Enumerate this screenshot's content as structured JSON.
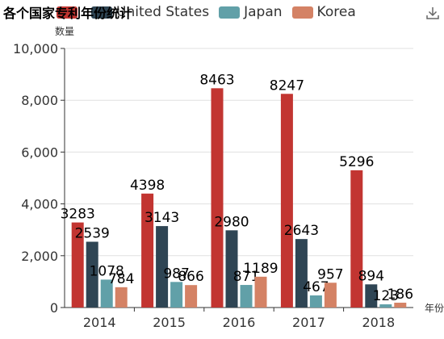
{
  "chart_data": {
    "type": "bar",
    "title": "各个国家专利年份统计",
    "xlabel": "年份",
    "ylabel": "数量",
    "categories": [
      "2014",
      "2015",
      "2016",
      "2017",
      "2018"
    ],
    "series": [
      {
        "name": "",
        "color": "#c23531",
        "values": [
          3283,
          4398,
          8463,
          8247,
          5296
        ]
      },
      {
        "name": "United States",
        "color": "#2f4554",
        "values": [
          2539,
          3143,
          2980,
          2643,
          894
        ]
      },
      {
        "name": "Japan",
        "color": "#61a0a8",
        "values": [
          1078,
          987,
          871,
          467,
          123
        ]
      },
      {
        "name": "Korea",
        "color": "#d48265",
        "values": [
          784,
          866,
          1189,
          957,
          186
        ]
      }
    ],
    "yticks": [
      "0",
      "2,000",
      "4,000",
      "6,000",
      "8,000",
      "10,000"
    ],
    "ylim": [
      0,
      10000
    ],
    "grid": true,
    "legend_position": "top"
  },
  "toolbar": {
    "download_icon": "download-icon"
  }
}
